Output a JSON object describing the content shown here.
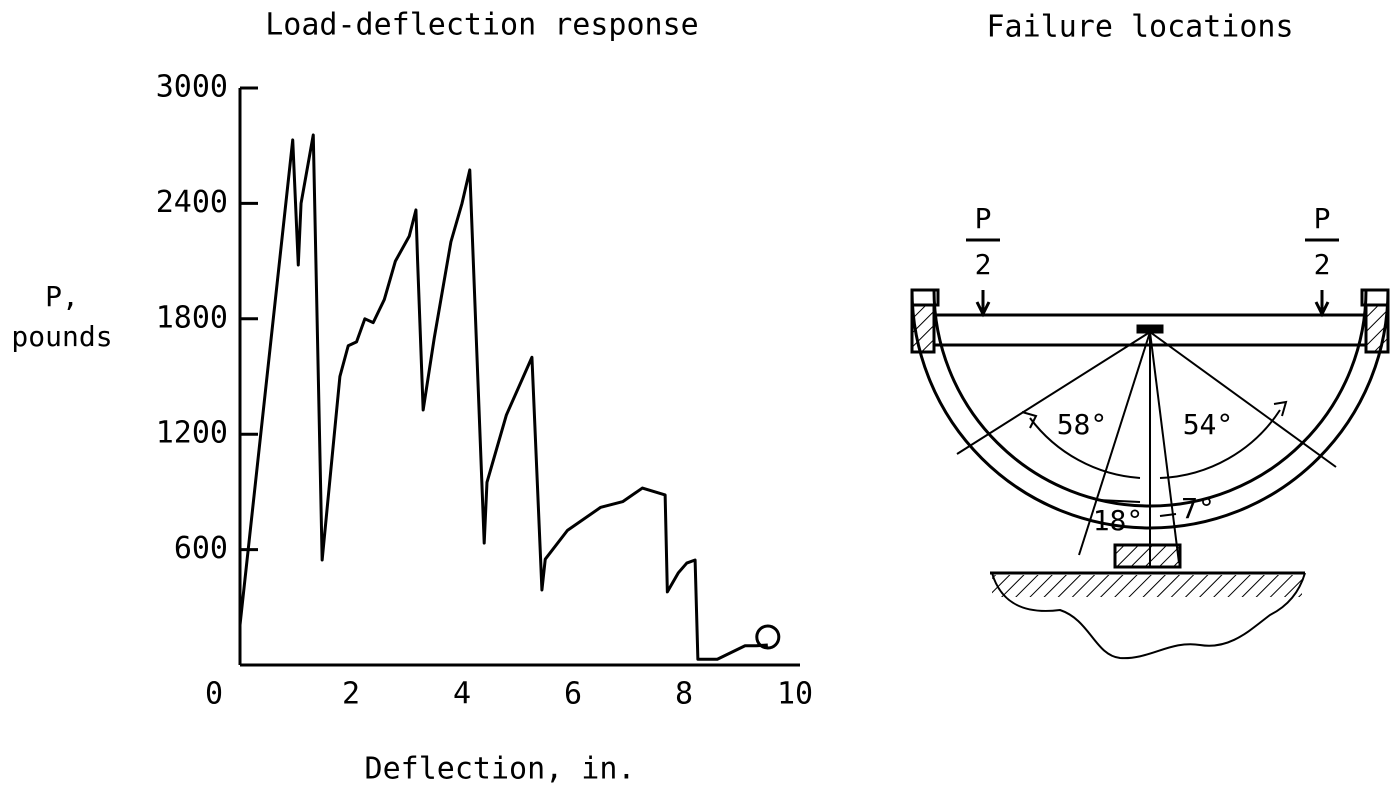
{
  "chart_data": {
    "type": "line",
    "title": "Load-deflection response",
    "xlabel": "Deflection, in.",
    "ylabel": [
      "P,",
      "pounds"
    ],
    "x": [
      0,
      0.95,
      1.05,
      1.1,
      1.32,
      1.48,
      1.8,
      1.95,
      2.1,
      2.25,
      2.4,
      2.6,
      2.8,
      3.05,
      3.17,
      3.2,
      3.3,
      3.5,
      3.8,
      4.0,
      4.14,
      4.4,
      4.45,
      4.8,
      5.26,
      5.44,
      5.5,
      5.9,
      6.5,
      6.9,
      7.25,
      7.66,
      7.7,
      7.9,
      8.05,
      8.2,
      8.25,
      8.6,
      9.1,
      9.3,
      9.51
    ],
    "values": [
      208,
      2730,
      2080,
      2400,
      2756,
      546,
      1500,
      1660,
      1680,
      1800,
      1780,
      1900,
      2100,
      2230,
      2366,
      2100,
      1326,
      1700,
      2200,
      2400,
      2574,
      634,
      950,
      1300,
      1600,
      390,
      550,
      700,
      820,
      850,
      920,
      884,
      380,
      480,
      530,
      546,
      30,
      30,
      100,
      100,
      104
    ],
    "color": "#000000",
    "xlim": [
      0,
      10
    ],
    "xticks": [
      0,
      2,
      4,
      6,
      8,
      10
    ],
    "ylim": [
      0,
      3000
    ],
    "yticks": [
      600,
      1200,
      1800,
      2400,
      3000
    ],
    "grid": false
  },
  "diagram": {
    "title": "Failure locations",
    "labels": [
      "P",
      "2",
      "P",
      "2",
      "58°",
      "54°",
      "18°",
      "7°"
    ]
  }
}
